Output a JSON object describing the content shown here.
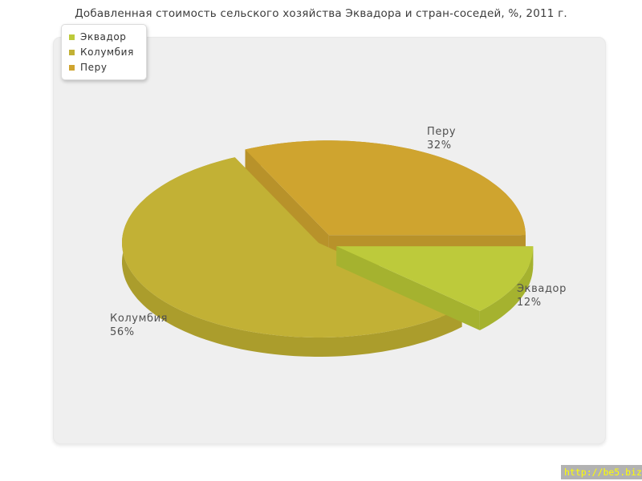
{
  "chart_data": {
    "type": "pie",
    "style": "3d-exploded",
    "title": "Добавленная стоимость сельского хозяйства Эквадора и стран-соседей, %, 2011 г.",
    "unit": "%",
    "start_angle_deg": 0,
    "direction": "clockwise",
    "legend_position": "top-left",
    "background_color": "#efefef",
    "slices": [
      {
        "label": "Эквадор",
        "value": 12,
        "pct_label": "12%",
        "color": "#bdca3b",
        "side_color": "#a5b22f",
        "exploded": true
      },
      {
        "label": "Колумбия",
        "value": 56,
        "pct_label": "56%",
        "color": "#c2b135",
        "side_color": "#ab9d2c",
        "exploded": false
      },
      {
        "label": "Перу",
        "value": 32,
        "pct_label": "32%",
        "color": "#cfa42f",
        "side_color": "#b8922a",
        "exploded": true
      }
    ]
  },
  "watermark": {
    "text": "http://be5.biz/",
    "text_color": "#ffff00",
    "background_color": "#b2b2b2"
  }
}
